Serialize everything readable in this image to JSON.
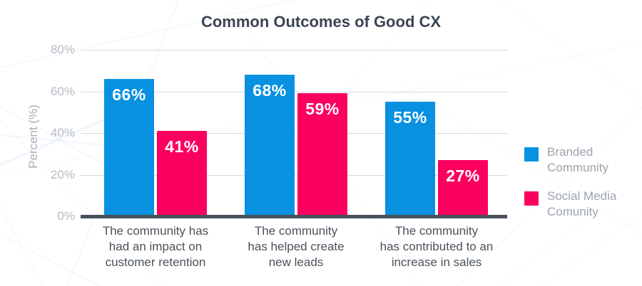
{
  "title": "Common Outcomes of Good CX",
  "y_axis": {
    "label": "Percent (%)",
    "ticks": [
      {
        "value": 0,
        "label": "0%"
      },
      {
        "value": 20,
        "label": "20%"
      },
      {
        "value": 40,
        "label": "40%"
      },
      {
        "value": 60,
        "label": "60%"
      },
      {
        "value": 80,
        "label": "80%"
      }
    ]
  },
  "chart_data": {
    "type": "bar",
    "title": "Common Outcomes of Good CX",
    "categories": [
      "The community has\nhad an impact on\ncustomer retention",
      "The community\nhas helped create\nnew leads",
      "The community\nhas contributed to an\nincrease in sales"
    ],
    "series": [
      {
        "name": "Branded\nCommunity",
        "color": "#0890E1",
        "values": [
          66,
          68,
          55
        ]
      },
      {
        "name": "Social Media\nComunity",
        "color": "#FC0060",
        "values": [
          41,
          59,
          27
        ]
      }
    ],
    "value_label_format": "{v}%",
    "xlabel": "",
    "ylabel": "Percent (%)",
    "ylim": [
      0,
      85
    ],
    "grid": true,
    "legend_position": "right"
  }
}
